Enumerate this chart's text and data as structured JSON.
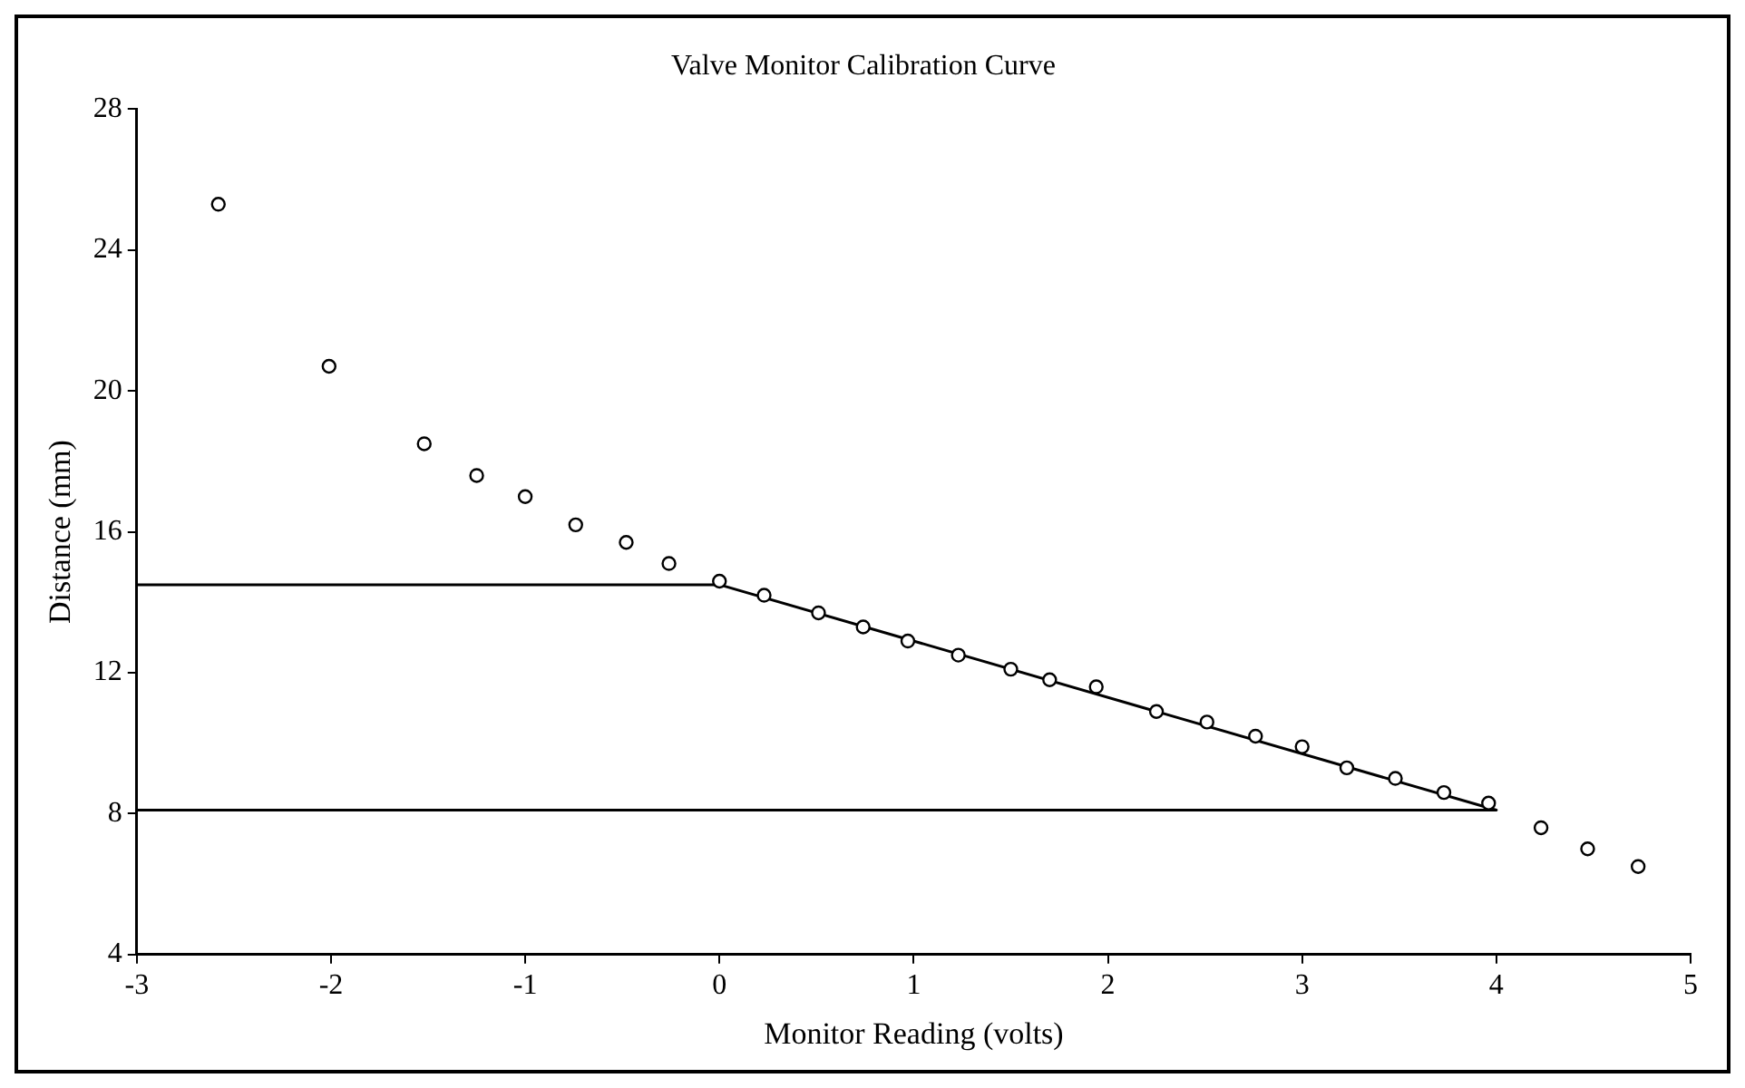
{
  "chart_data": {
    "type": "scatter",
    "title": "Valve Monitor Calibration Curve",
    "xlabel": "Monitor Reading (volts)",
    "ylabel": "Distance (mm)",
    "xlim": [
      -3,
      5
    ],
    "xticks": [
      -3,
      -2,
      -1,
      0,
      1,
      2,
      3,
      4,
      5
    ],
    "ylim": [
      4,
      28
    ],
    "yticks": [
      4,
      8,
      12,
      16,
      20,
      24,
      28
    ],
    "grid": false,
    "legend": false,
    "series": [
      {
        "type": "scatter",
        "marker": "circle",
        "color": "#000000",
        "x": [
          -2.58,
          -2.01,
          -1.52,
          -1.25,
          -1.0,
          -0.74,
          -0.48,
          -0.26,
          0.0,
          0.23,
          0.51,
          0.74,
          0.97,
          1.23,
          1.5,
          1.7,
          1.94,
          2.25,
          2.51,
          2.76,
          3.0,
          3.23,
          3.48,
          3.73,
          3.96,
          4.23,
          4.47,
          4.73
        ],
        "values": [
          25.3,
          20.7,
          18.5,
          17.6,
          17.0,
          16.2,
          15.7,
          15.1,
          14.6,
          14.2,
          13.7,
          13.3,
          12.9,
          12.5,
          12.1,
          11.8,
          11.6,
          10.9,
          10.6,
          10.2,
          9.9,
          9.3,
          9.0,
          8.6,
          8.3,
          7.6,
          7.0,
          6.5
        ]
      },
      {
        "type": "line",
        "marker": "none",
        "line_style": "solid",
        "color": "#000000",
        "x": [
          -3,
          0,
          4,
          -3
        ],
        "values": [
          14.5,
          14.5,
          8.1,
          8.1
        ]
      }
    ]
  }
}
